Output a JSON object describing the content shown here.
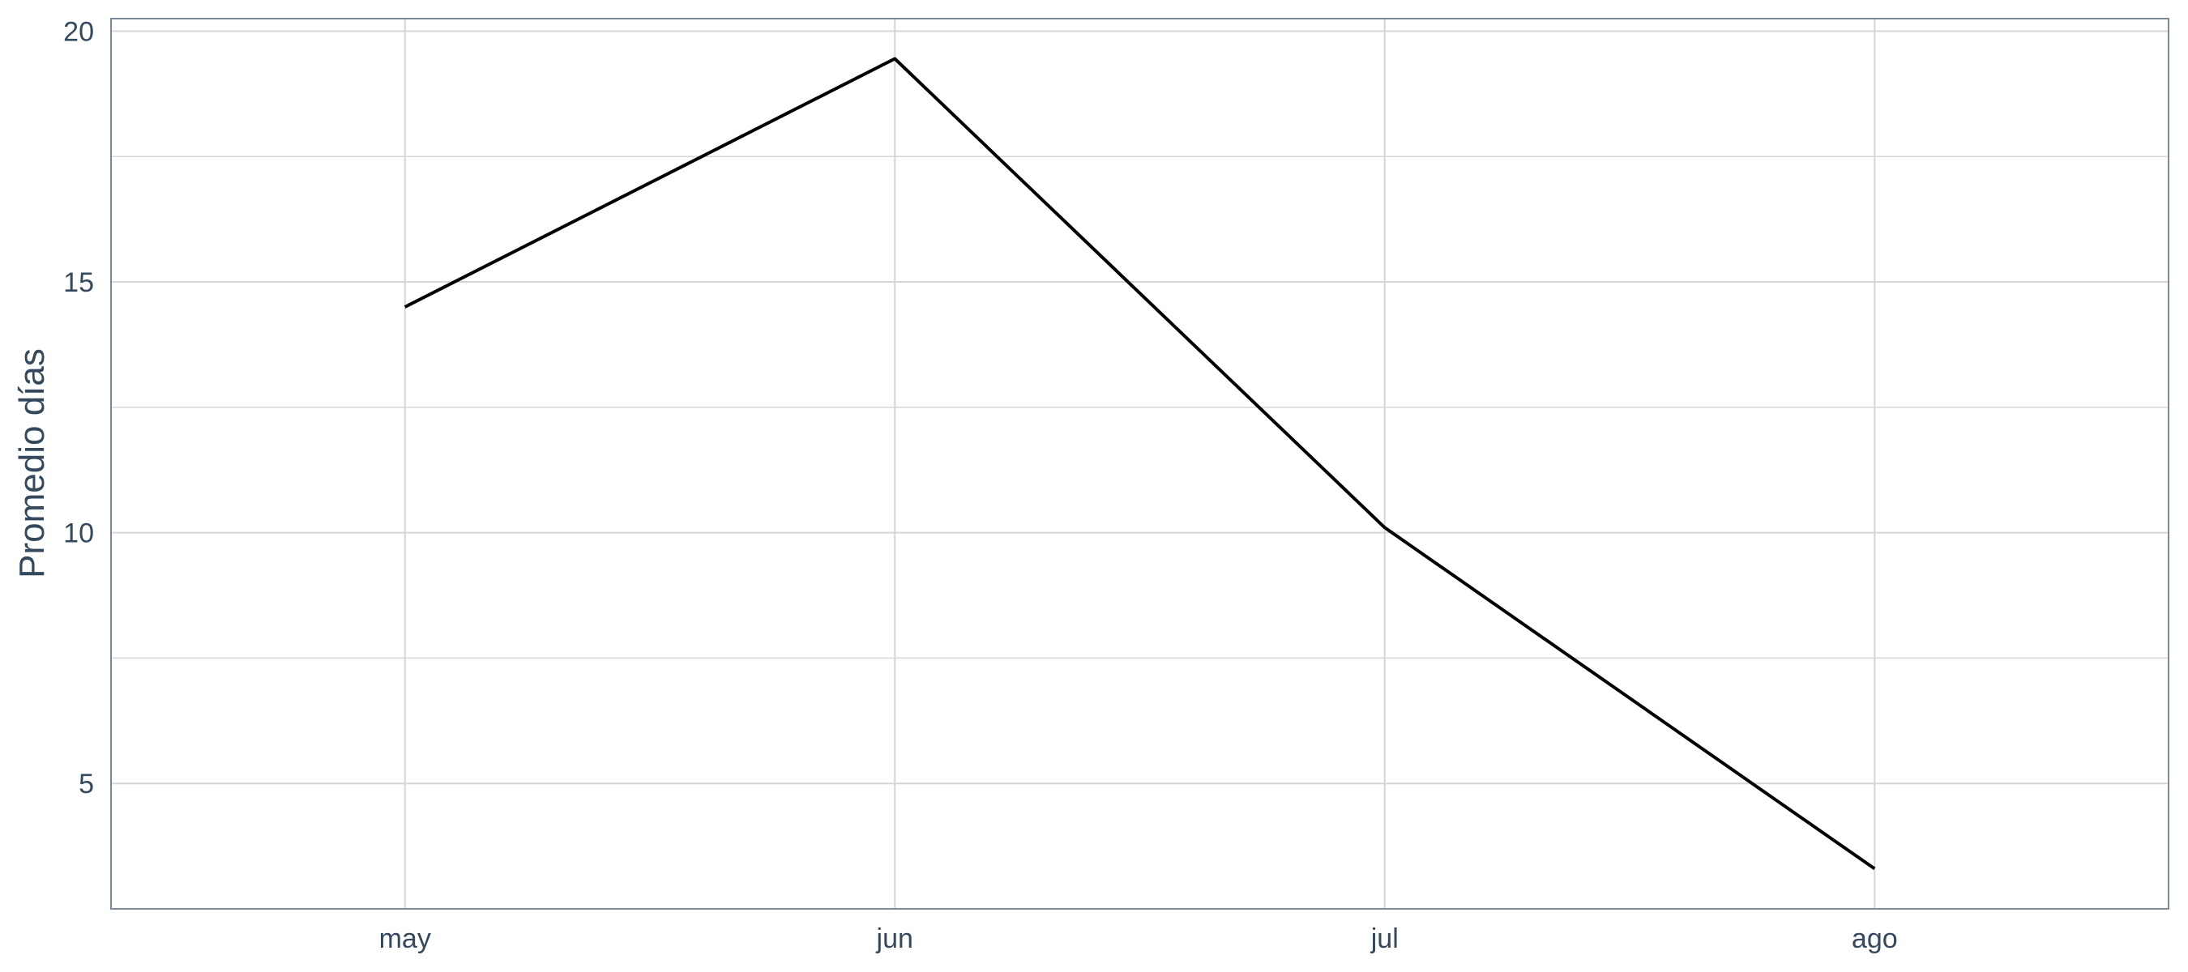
{
  "chart_data": {
    "type": "line",
    "title": "",
    "xlabel": "",
    "ylabel": "Promedio días",
    "categories": [
      "may",
      "jun",
      "jul",
      "ago"
    ],
    "series": [
      {
        "values": [
          14.5,
          19.45,
          10.1,
          3.3
        ],
        "color": "#000000"
      }
    ],
    "ylim": [
      2.5,
      20.25
    ],
    "yticks": [
      5,
      10,
      15,
      20
    ],
    "yticks_minor": [
      7.5,
      12.5,
      17.5
    ],
    "grid": true,
    "legend": "none"
  }
}
